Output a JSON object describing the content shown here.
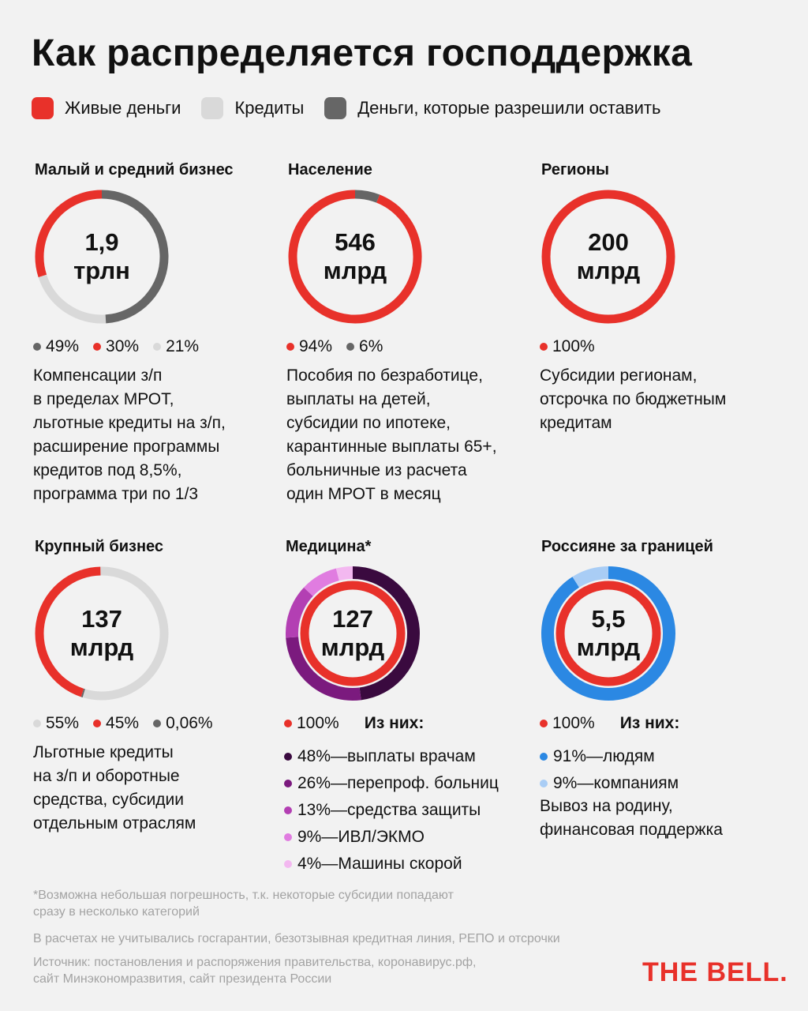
{
  "title": "Как распределяется господдержка",
  "colors": {
    "live": "#e8312a",
    "credit": "#d9d9d9",
    "kept": "#666666",
    "med1": "#3a0a3f",
    "med2": "#7b1a7e",
    "med3": "#b33fb3",
    "med4": "#e07ce0",
    "med5": "#f3b8f0",
    "abroad1": "#2b88e3",
    "abroad2": "#a9cdf5"
  },
  "legend": [
    {
      "label": "Живые деньги",
      "color": "#e8312a"
    },
    {
      "label": "Кредиты",
      "color": "#d9d9d9"
    },
    {
      "label": "Деньги, которые разрешили оставить",
      "color": "#666666"
    }
  ],
  "chart_data": [
    {
      "type": "pie",
      "title": "Малый и средний бизнес",
      "total": [
        "1,9",
        "трлн"
      ],
      "slices": [
        {
          "label": "49%",
          "value": 49,
          "color": "#666666"
        },
        {
          "label": "30%",
          "value": 30,
          "color": "#e8312a"
        },
        {
          "label": "21%",
          "value": 21,
          "color": "#d9d9d9"
        }
      ],
      "description": "Компенсации з/п\nв пределах МРОТ,\nльготные кредиты на з/п,\nрасширение программы\nкредитов под 8,5%,\nпрограмма три по 1/3"
    },
    {
      "type": "pie",
      "title": "Население",
      "total": [
        "546",
        "млрд"
      ],
      "slices": [
        {
          "label": "94%",
          "value": 94,
          "color": "#e8312a"
        },
        {
          "label": "6%",
          "value": 6,
          "color": "#666666"
        }
      ],
      "description": "Пособия по безработице,\nвыплаты на детей,\nсубсидии по ипотеке,\nкарантинные выплаты 65+,\nбольничные из расчета\nодин МРОТ в месяц"
    },
    {
      "type": "pie",
      "title": "Регионы",
      "total": [
        "200",
        "млрд"
      ],
      "slices": [
        {
          "label": "100%",
          "value": 100,
          "color": "#e8312a"
        }
      ],
      "description": "Субсидии регионам,\nотсрочка по бюджетным\nкредитам"
    },
    {
      "type": "pie",
      "title": "Крупный бизнес",
      "total": [
        "137",
        "млрд"
      ],
      "slices": [
        {
          "label": "55%",
          "value": 55,
          "color": "#d9d9d9"
        },
        {
          "label": "45%",
          "value": 45,
          "color": "#e8312a"
        },
        {
          "label": "0,06%",
          "value": 0.06,
          "color": "#666666"
        }
      ],
      "description": "Льготные кредиты\nна з/п и оборотные\nсредства, субсидии\nотдельным отраслям"
    },
    {
      "type": "pie",
      "title": "Медицина*",
      "total": [
        "127",
        "млрд"
      ],
      "slices": [
        {
          "label": "100%",
          "value": 100,
          "color": "#e8312a"
        }
      ],
      "of_them_label": "Из них:",
      "breakdown": [
        {
          "label": "48%—выплаты врачам",
          "value": 48,
          "color": "#3a0a3f"
        },
        {
          "label": "26%—перепроф. больниц",
          "value": 26,
          "color": "#7b1a7e"
        },
        {
          "label": "13%—средства защиты",
          "value": 13,
          "color": "#b33fb3"
        },
        {
          "label": "9%—ИВЛ/ЭКМО",
          "value": 9,
          "color": "#e07ce0"
        },
        {
          "label": "4%—Машины скорой",
          "value": 4,
          "color": "#f3b8f0"
        }
      ]
    },
    {
      "type": "pie",
      "title": "Россияне за границей",
      "total": [
        "5,5",
        "млрд"
      ],
      "slices": [
        {
          "label": "100%",
          "value": 100,
          "color": "#e8312a"
        }
      ],
      "of_them_label": "Из них:",
      "breakdown": [
        {
          "label": "91%—людям",
          "value": 91,
          "color": "#2b88e3"
        },
        {
          "label": "9%—компаниям",
          "value": 9,
          "color": "#a9cdf5"
        }
      ],
      "description": "Вывоз на родину,\nфинансовая поддержка"
    }
  ],
  "footnotes": {
    "note1": "*Возможна небольшая погрешность, т.к. некоторые субсидии попадают\nсразу в несколько категорий",
    "note2": "В расчетах не учитывались госгарантии, безотзывная кредитная линия, РЕПО и отсрочки",
    "source": "Источник: постановления и распоряжения правительства, коронавирус.рф,\nсайт Минэкономразвития, сайт президента России"
  },
  "logo": "THE BELL."
}
